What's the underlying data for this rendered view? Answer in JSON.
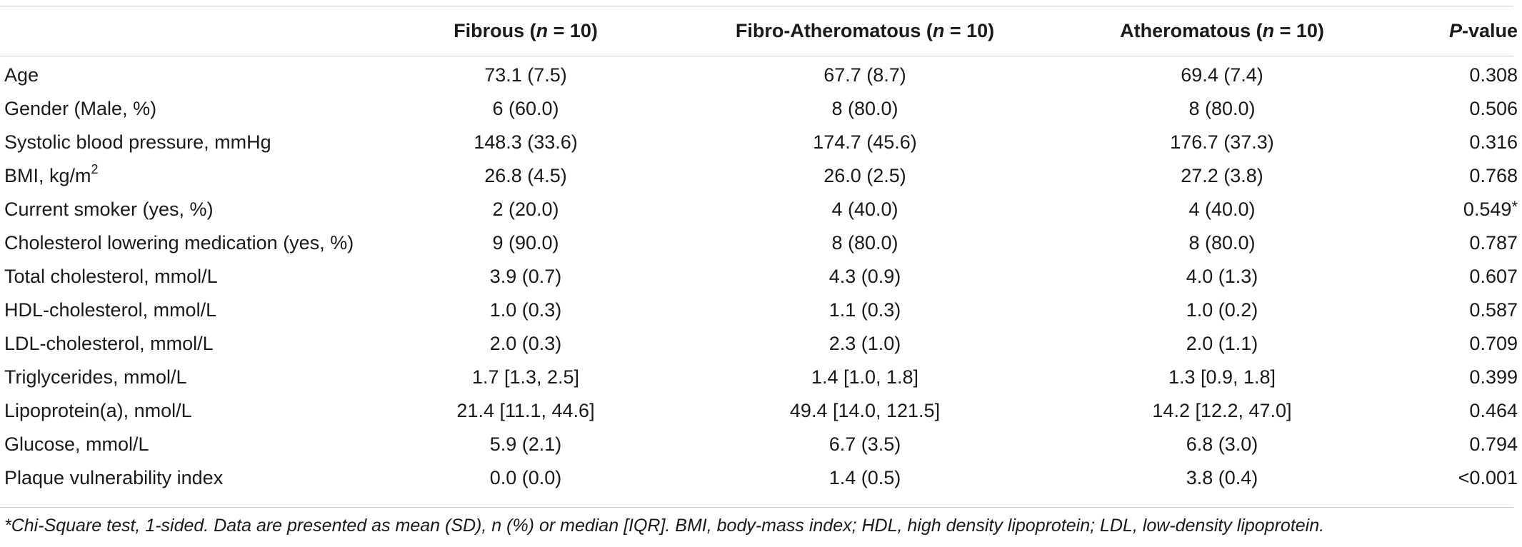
{
  "table": {
    "headers": {
      "variable": "",
      "fibrous": {
        "label": "Fibrous (",
        "n_symbol": "n",
        "n_value": " = 10)"
      },
      "fibro_atheromatous": {
        "label": "Fibro-Atheromatous (",
        "n_symbol": "n",
        "n_value": " = 10)"
      },
      "atheromatous": {
        "label": "Atheromatous (",
        "n_symbol": "n",
        "n_value": " = 10)"
      },
      "p_value": {
        "p_symbol": "P",
        "suffix": "-value"
      }
    },
    "rows": [
      {
        "variable": "Age",
        "variable_sup": "",
        "fibrous": "73.1 (7.5)",
        "fibro_atheromatous": "67.7 (8.7)",
        "atheromatous": "69.4 (7.4)",
        "p_value": "0.308",
        "p_mark": ""
      },
      {
        "variable": "Gender (Male, %)",
        "variable_sup": "",
        "fibrous": "6 (60.0)",
        "fibro_atheromatous": "8 (80.0)",
        "atheromatous": "8 (80.0)",
        "p_value": "0.506",
        "p_mark": ""
      },
      {
        "variable": "Systolic blood pressure, mmHg",
        "variable_sup": "",
        "fibrous": "148.3 (33.6)",
        "fibro_atheromatous": "174.7 (45.6)",
        "atheromatous": "176.7 (37.3)",
        "p_value": "0.316",
        "p_mark": ""
      },
      {
        "variable": "BMI, kg/m",
        "variable_sup": "2",
        "fibrous": "26.8 (4.5)",
        "fibro_atheromatous": "26.0 (2.5)",
        "atheromatous": "27.2 (3.8)",
        "p_value": "0.768",
        "p_mark": ""
      },
      {
        "variable": "Current smoker (yes, %)",
        "variable_sup": "",
        "fibrous": "2 (20.0)",
        "fibro_atheromatous": "4 (40.0)",
        "atheromatous": "4 (40.0)",
        "p_value": "0.549",
        "p_mark": "*"
      },
      {
        "variable": "Cholesterol lowering medication (yes, %)",
        "variable_sup": "",
        "fibrous": "9 (90.0)",
        "fibro_atheromatous": "8 (80.0)",
        "atheromatous": "8 (80.0)",
        "p_value": "0.787",
        "p_mark": ""
      },
      {
        "variable": "Total cholesterol, mmol/L",
        "variable_sup": "",
        "fibrous": "3.9 (0.7)",
        "fibro_atheromatous": "4.3 (0.9)",
        "atheromatous": "4.0 (1.3)",
        "p_value": "0.607",
        "p_mark": ""
      },
      {
        "variable": "HDL-cholesterol, mmol/L",
        "variable_sup": "",
        "fibrous": "1.0 (0.3)",
        "fibro_atheromatous": "1.1 (0.3)",
        "atheromatous": "1.0 (0.2)",
        "p_value": "0.587",
        "p_mark": ""
      },
      {
        "variable": "LDL-cholesterol, mmol/L",
        "variable_sup": "",
        "fibrous": "2.0 (0.3)",
        "fibro_atheromatous": "2.3 (1.0)",
        "atheromatous": "2.0 (1.1)",
        "p_value": "0.709",
        "p_mark": ""
      },
      {
        "variable": "Triglycerides, mmol/L",
        "variable_sup": "",
        "fibrous": "1.7 [1.3, 2.5]",
        "fibro_atheromatous": "1.4 [1.0, 1.8]",
        "atheromatous": "1.3 [0.9, 1.8]",
        "p_value": "0.399",
        "p_mark": ""
      },
      {
        "variable": "Lipoprotein(a), nmol/L",
        "variable_sup": "",
        "fibrous": "21.4 [11.1, 44.6]",
        "fibro_atheromatous": "49.4 [14.0, 121.5]",
        "atheromatous": "14.2 [12.2, 47.0]",
        "p_value": "0.464",
        "p_mark": ""
      },
      {
        "variable": "Glucose, mmol/L",
        "variable_sup": "",
        "fibrous": "5.9 (2.1)",
        "fibro_atheromatous": "6.7 (3.5)",
        "atheromatous": "6.8 (3.0)",
        "p_value": "0.794",
        "p_mark": ""
      },
      {
        "variable": "Plaque vulnerability index",
        "variable_sup": "",
        "fibrous": "0.0 (0.0)",
        "fibro_atheromatous": "1.4 (0.5)",
        "atheromatous": "3.8 (0.4)",
        "p_value": "<0.001",
        "p_mark": ""
      }
    ]
  },
  "footnote": "*Chi-Square test, 1-sided. Data are presented as mean (SD), n (%) or median [IQR]. BMI, body-mass index; HDL, high density lipoprotein; LDL, low-density lipoprotein.",
  "colors": {
    "text": "#1a1a1a",
    "rule": "#c9c9c9",
    "background": "#ffffff"
  }
}
